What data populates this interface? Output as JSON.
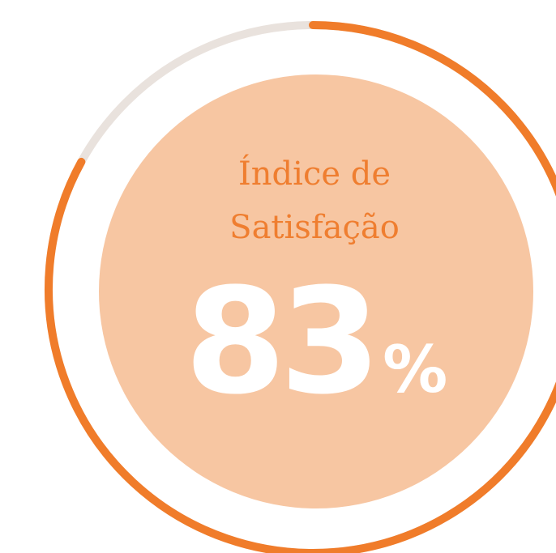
{
  "chart_data": {
    "type": "gauge",
    "title": "Índice de Satisfação",
    "values": [
      83
    ],
    "value_labels": [
      "83"
    ],
    "unit": "%",
    "ylim": [
      0,
      100
    ],
    "color": "#f07c2a",
    "track_color": "#e9e2dd",
    "center_color": "#f7c6a2"
  }
}
